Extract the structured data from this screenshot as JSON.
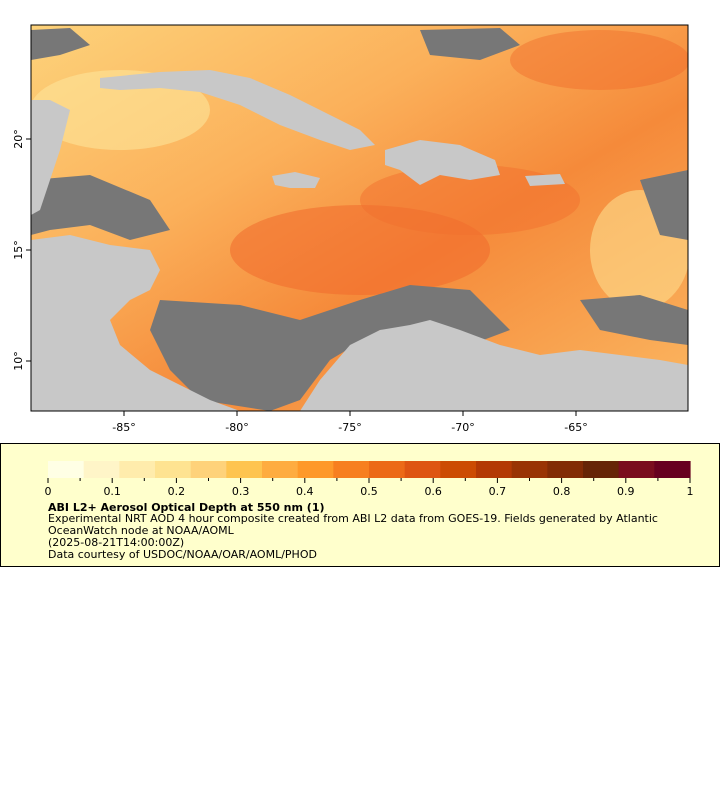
{
  "map": {
    "lon_ticks": [
      "-85°",
      "-80°",
      "-75°",
      "-70°",
      "-65°"
    ],
    "lat_ticks": [
      "20°",
      "15°",
      "10°"
    ],
    "colors": {
      "ocean_aod_low": "#fde49a",
      "ocean_aod_mid": "#fbab52",
      "ocean_aod_high": "#f06a2b",
      "land": "#c8c8c8",
      "no_data": "#777777",
      "rivers": "#5b9bd5",
      "borders": "#000000",
      "admin_lines": "#8a8a8a"
    }
  },
  "legend": {
    "tick_labels": [
      "0",
      "0.1",
      "0.2",
      "0.3",
      "0.4",
      "0.5",
      "0.6",
      "0.7",
      "0.8",
      "0.9",
      "1"
    ],
    "colors": [
      "#ffffe5",
      "#fff5c8",
      "#ffecac",
      "#fee391",
      "#fed27a",
      "#fec44f",
      "#feac40",
      "#fe9929",
      "#f77f1f",
      "#ec6a17",
      "#de5512",
      "#cc4c02",
      "#b33a04",
      "#993404",
      "#822c05",
      "#662506",
      "#7a0d1e",
      "#67001f"
    ],
    "title": "ABI L2+ Aerosol Optical Depth at 550 nm (1)",
    "description": "Experimental NRT AOD 4 hour composite created from ABI L2 data from GOES-19. Fields generated by Atlantic OceanWatch node at NOAA/AOML",
    "timestamp": "(2025-08-21T14:00:00Z)",
    "credit": "Data courtesy of USDOC/NOAA/OAR/AOML/PHOD"
  }
}
